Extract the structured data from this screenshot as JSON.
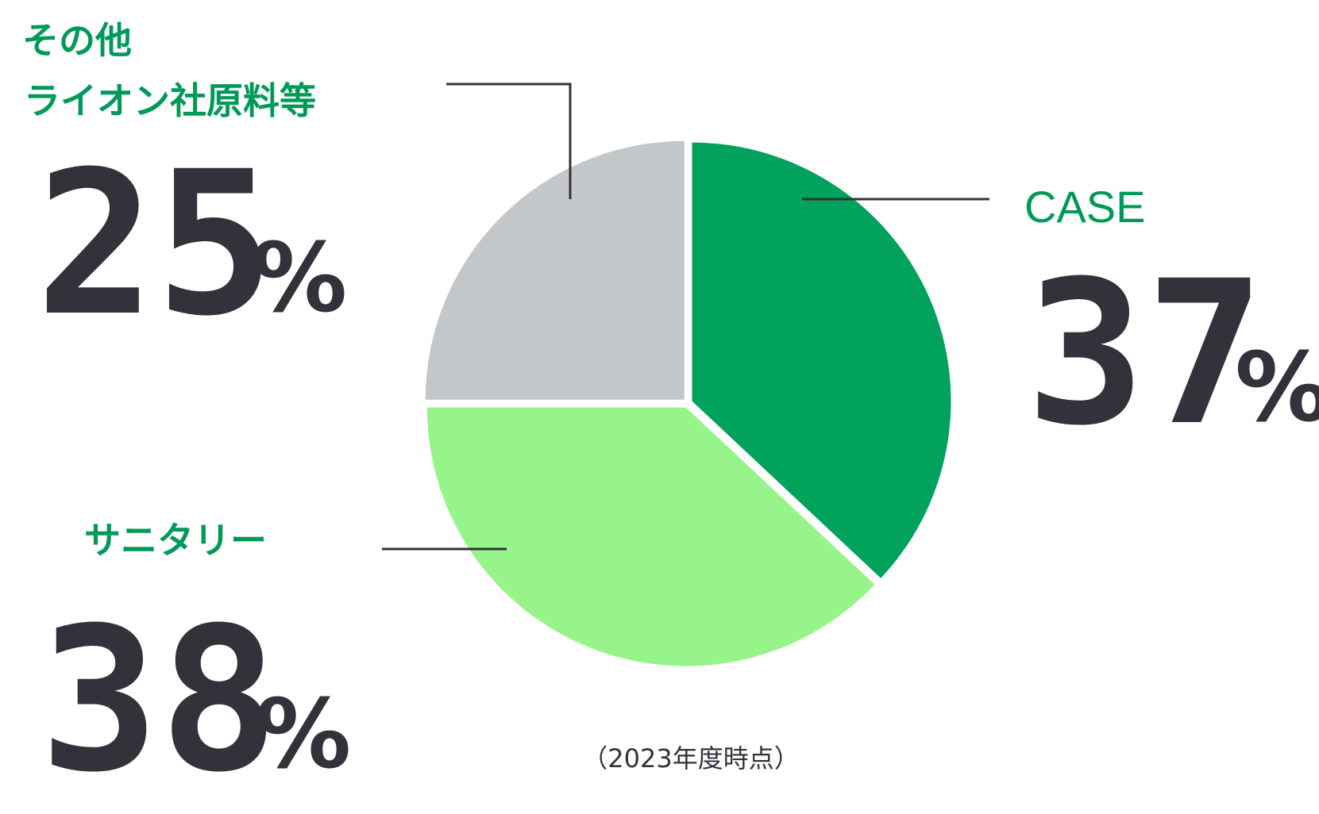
{
  "chart_data": {
    "type": "pie",
    "categories": [
      "CASE",
      "サニタリー",
      "その他\nライオン社原料等"
    ],
    "values": [
      37,
      38,
      25
    ],
    "unit": "%",
    "note": "（2023年度時点）",
    "colors": {
      "CASE": "#00a25c",
      "サニタリー": "#97f48a",
      "その他": "#c4c7c9",
      "label": "#009a58",
      "number": "#33323a",
      "leader": "#33323a",
      "separator": "#ffffff"
    }
  }
}
